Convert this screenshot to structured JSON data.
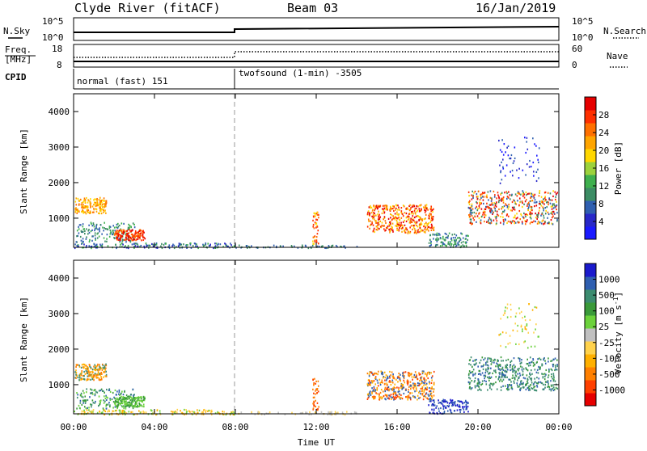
{
  "header": {
    "station": "Clyde River (fitACF)",
    "beam": "Beam 03",
    "date": "16/Jan/2019"
  },
  "noise_panel": {
    "left_label": "N.Sky",
    "right_label": "N.Search",
    "left_ticks": [
      "10^5",
      "10^0"
    ],
    "right_ticks": [
      "10^5",
      "10^0"
    ]
  },
  "freq_panel": {
    "left_label_1": "Freq.",
    "left_label_2": "[MHz]",
    "right_label": "Nave",
    "left_ticks": [
      "18",
      "8"
    ],
    "right_ticks": [
      "60",
      "0"
    ]
  },
  "cpid_panel": {
    "label": "CPID",
    "modes": [
      "normal (fast) 151",
      "twofsound (1-min) -3505"
    ]
  },
  "colors": {
    "power": [
      "#1a1aff",
      "#2828c8",
      "#2f5fb0",
      "#3c8c64",
      "#3fb04e",
      "#9cd23c",
      "#ffd700",
      "#ffa500",
      "#ff7000",
      "#ff3000",
      "#e60000"
    ],
    "velocity": [
      "#e60000",
      "#ff4000",
      "#ff8000",
      "#ffb000",
      "#ffd24c",
      "#c0c0c0",
      "#6cd23c",
      "#3a9a3a",
      "#3c8c70",
      "#2f5fb0",
      "#1a1acc"
    ]
  },
  "chart_data": [
    {
      "type": "heatmap",
      "name": "power",
      "ylabel": "Slant Range [km]",
      "colorbar_label": "Power [dB]",
      "colorbar_ticks": [
        "28",
        "24",
        "20",
        "16",
        "12",
        "8",
        "4"
      ],
      "y_ticks": [
        "4000",
        "3000",
        "2000",
        "1000"
      ],
      "ylim": [
        180,
        4500
      ],
      "xlim_hours": [
        0,
        24
      ],
      "x_ticks": [
        "00:00",
        "04:00",
        "08:00",
        "12:00",
        "16:00",
        "20:00",
        "00:00"
      ],
      "xlabel": "Time UT"
    },
    {
      "type": "heatmap",
      "name": "velocity",
      "ylabel": "Slant Range [km]",
      "colorbar_label": "Velocity [m s",
      "colorbar_label_exp": "-1",
      "colorbar_label_end": "]",
      "colorbar_ticks": [
        "1000",
        "500",
        "100",
        "25",
        "-25",
        "-100",
        "-500",
        "-1000"
      ],
      "y_ticks": [
        "4000",
        "3000",
        "2000",
        "1000"
      ],
      "ylim": [
        180,
        4500
      ],
      "xlim_hours": [
        0,
        24
      ],
      "x_ticks": [
        "00:00",
        "04:00",
        "08:00",
        "12:00",
        "16:00",
        "20:00",
        "00:00"
      ],
      "xlabel": "Time UT"
    }
  ]
}
